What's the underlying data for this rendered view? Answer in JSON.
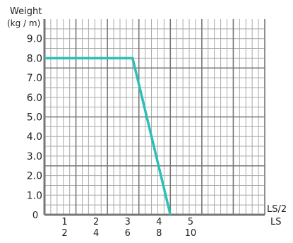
{
  "chart_data": {
    "type": "line",
    "ylabel_line1": "Weight",
    "ylabel_line2": "(kg / m)",
    "xlabel_top": "LS/2",
    "xlabel_bottom": "LS",
    "origin_label": "0",
    "ylim": [
      0,
      10
    ],
    "xlim": [
      0,
      7
    ],
    "grid": true,
    "y_ticks": [
      {
        "value": 1,
        "label": "1.0"
      },
      {
        "value": 2,
        "label": "2.0"
      },
      {
        "value": 3,
        "label": "3.0"
      },
      {
        "value": 4,
        "label": "4.0"
      },
      {
        "value": 5,
        "label": "5.0"
      },
      {
        "value": 6,
        "label": "6.0"
      },
      {
        "value": 7,
        "label": "7.0"
      },
      {
        "value": 8,
        "label": "8.0"
      },
      {
        "value": 9,
        "label": "9.0"
      }
    ],
    "x_ticks_top": [
      {
        "value": 1,
        "label": "1"
      },
      {
        "value": 2,
        "label": "2"
      },
      {
        "value": 3,
        "label": "3"
      },
      {
        "value": 4,
        "label": "4"
      },
      {
        "value": 5,
        "label": "5"
      }
    ],
    "x_ticks_bottom": [
      {
        "value": 1,
        "label": "2"
      },
      {
        "value": 2,
        "label": "4"
      },
      {
        "value": 3,
        "label": "6"
      },
      {
        "value": 4,
        "label": "8"
      },
      {
        "value": 5,
        "label": "10"
      }
    ],
    "series": [
      {
        "color": "#2bbfb6",
        "points": [
          {
            "x": 0,
            "y": 8.0
          },
          {
            "x": 2.8,
            "y": 8.0
          },
          {
            "x": 4.0,
            "y": 0
          }
        ]
      }
    ]
  }
}
